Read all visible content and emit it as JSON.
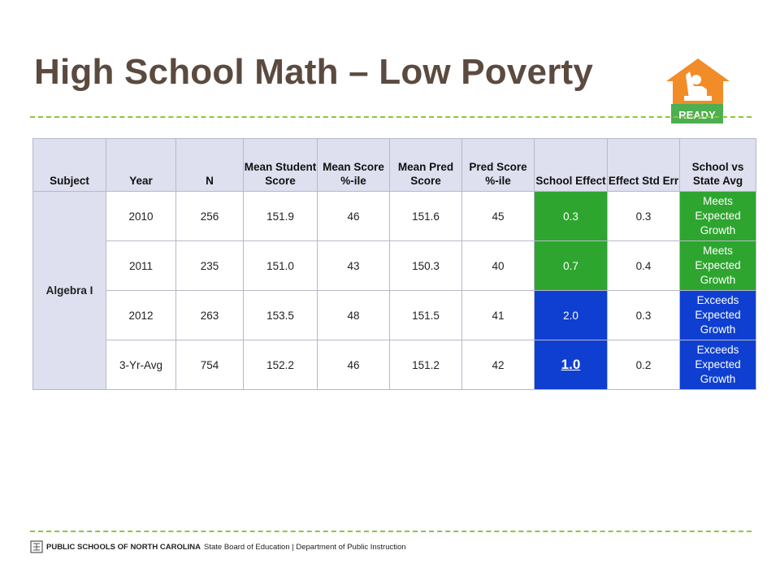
{
  "title": "High School Math – Low Poverty",
  "logo": {
    "text": "READY",
    "icon": "ready-house-logo-icon",
    "colors": {
      "house": "#f28c28",
      "banner": "#4caf50"
    }
  },
  "colors": {
    "title": "#5b4a3f",
    "divider": "#8dc63f",
    "header_bg": "#dedfef",
    "meets": "#2ea52f",
    "exceeds": "#0f3fd1"
  },
  "table": {
    "headers": [
      "Subject",
      "Year",
      "N",
      "Mean Student Score",
      "Mean Score %-ile",
      "Mean Pred Score",
      "Pred Score %-ile",
      "School Effect",
      "Effect Std Err",
      "School vs State Avg"
    ],
    "subject": "Algebra I",
    "rows": [
      {
        "year": "2010",
        "n": "256",
        "mean_score": "151.9",
        "mean_pct": "46",
        "pred_score": "151.6",
        "pred_pct": "45",
        "effect": "0.3",
        "std_err": "0.3",
        "status": "Meets Expected Growth"
      },
      {
        "year": "2011",
        "n": "235",
        "mean_score": "151.0",
        "mean_pct": "43",
        "pred_score": "150.3",
        "pred_pct": "40",
        "effect": "0.7",
        "std_err": "0.4",
        "status": "Meets Expected Growth"
      },
      {
        "year": "2012",
        "n": "263",
        "mean_score": "153.5",
        "mean_pct": "48",
        "pred_score": "151.5",
        "pred_pct": "41",
        "effect": "2.0",
        "std_err": "0.3",
        "status": "Exceeds Expected Growth"
      },
      {
        "year": "3-Yr-Avg",
        "n": "754",
        "mean_score": "152.2",
        "mean_pct": "46",
        "pred_score": "151.2",
        "pred_pct": "42",
        "effect": "1.0",
        "std_err": "0.2",
        "status": "Exceeds Expected Growth"
      }
    ]
  },
  "footer": {
    "org": "PUBLIC SCHOOLS OF NORTH CAROLINA",
    "dept": "State Board of Education | Department of Public Instruction",
    "icon": "nc-seal-icon"
  }
}
